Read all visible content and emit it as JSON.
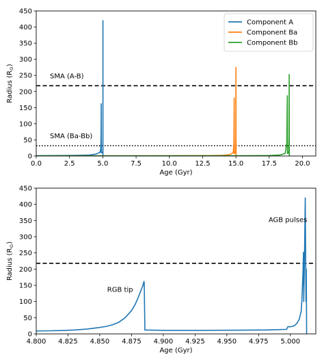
{
  "chart_data": [
    {
      "type": "line",
      "xlabel": "Age (Gyr)",
      "ylabel": "Radius (R$_\\odot$)",
      "ylabel_parts": {
        "main": "Radius (R",
        "sub": "⊙",
        "close": ")"
      },
      "xlim": [
        0,
        21
      ],
      "ylim": [
        0,
        450
      ],
      "xticks": [
        0.0,
        2.5,
        5.0,
        7.5,
        10.0,
        12.5,
        15.0,
        17.5,
        20.0
      ],
      "xtick_labels": [
        "0.0",
        "2.5",
        "5.0",
        "7.5",
        "10.0",
        "12.5",
        "15.0",
        "17.5",
        "20.0"
      ],
      "yticks": [
        0,
        50,
        100,
        150,
        200,
        250,
        300,
        350,
        400,
        450
      ],
      "ytick_labels": [
        "0",
        "50",
        "100",
        "150",
        "200",
        "250",
        "300",
        "350",
        "400",
        "450"
      ],
      "legend_position": "top-right",
      "series": [
        {
          "name": "Component A",
          "color": "#1f77b4",
          "x": [
            0.0,
            1.0,
            2.0,
            3.0,
            4.0,
            4.5,
            4.8,
            4.85,
            4.87,
            4.885,
            4.887,
            4.95,
            4.995,
            5.005,
            5.01,
            5.011,
            5.012,
            5.013,
            5.014
          ],
          "y": [
            1,
            1.2,
            1.5,
            2,
            3,
            6,
            12,
            25,
            60,
            162,
            10,
            10,
            12,
            25,
            100,
            420,
            250,
            0,
            0
          ]
        },
        {
          "name": "Component Ba",
          "color": "#ff7f0e",
          "x": [
            0.0,
            5.0,
            10.0,
            13.0,
            14.0,
            14.5,
            14.8,
            14.85,
            14.87,
            14.88,
            14.95,
            14.98,
            14.995,
            15.0,
            15.01,
            15.02
          ],
          "y": [
            0.5,
            0.6,
            0.8,
            1.2,
            2,
            4,
            10,
            40,
            180,
            8,
            9,
            15,
            60,
            275,
            0,
            0
          ]
        },
        {
          "name": "Component Bb",
          "color": "#2ca02c",
          "x": [
            0.0,
            5.0,
            10.0,
            15.0,
            17.5,
            18.3,
            18.7,
            18.82,
            18.86,
            18.87,
            18.93,
            18.97,
            18.995,
            19.0,
            19.01,
            19.02
          ],
          "y": [
            0.4,
            0.5,
            0.6,
            0.8,
            1.5,
            3,
            8,
            40,
            187,
            8,
            9,
            15,
            60,
            253,
            0,
            0
          ]
        }
      ],
      "hlines": [
        {
          "y": 218,
          "style": "dashed",
          "label": "SMA (A-B)"
        },
        {
          "y": 32,
          "style": "dotted",
          "label": "SMA (Ba-Bb)"
        }
      ]
    },
    {
      "type": "line",
      "xlabel": "Age (Gyr)",
      "ylabel": "Radius (R$_\\odot$)",
      "ylabel_parts": {
        "main": "Radius (R",
        "sub": "⊙",
        "close": ")"
      },
      "xlim": [
        4.8,
        5.02
      ],
      "ylim": [
        0,
        450
      ],
      "xticks": [
        4.8,
        4.825,
        4.85,
        4.875,
        4.9,
        4.925,
        4.95,
        4.975,
        5.0
      ],
      "xtick_labels": [
        "4.800",
        "4.825",
        "4.850",
        "4.875",
        "4.900",
        "4.925",
        "4.950",
        "4.975",
        "5.000"
      ],
      "yticks": [
        0,
        50,
        100,
        150,
        200,
        250,
        300,
        350,
        400,
        450
      ],
      "ytick_labels": [
        "0",
        "50",
        "100",
        "150",
        "200",
        "250",
        "300",
        "350",
        "400",
        "450"
      ],
      "series": [
        {
          "name": "",
          "color": "#1f77b4",
          "x": [
            4.8,
            4.81,
            4.82,
            4.83,
            4.84,
            4.85,
            4.855,
            4.86,
            4.865,
            4.87,
            4.875,
            4.878,
            4.88,
            4.882,
            4.884,
            4.8848,
            4.885,
            4.8855,
            4.9,
            4.93,
            4.96,
            4.98,
            4.99,
            4.997,
            4.998,
            5.0,
            5.003,
            5.005,
            5.007,
            5.0085,
            5.009,
            5.0095,
            5.01,
            5.0103,
            5.0105,
            5.011,
            5.0113,
            5.0117,
            5.012,
            5.0123,
            5.0125,
            5.0128
          ],
          "y": [
            9,
            9.5,
            10.5,
            12,
            15,
            20,
            23,
            28,
            36,
            50,
            72,
            92,
            110,
            130,
            150,
            162,
            155,
            12,
            11,
            11,
            11.5,
            12,
            13,
            14,
            22,
            22,
            25,
            32,
            45,
            70,
            100,
            150,
            200,
            252,
            100,
            210,
            300,
            420,
            250,
            100,
            200,
            0
          ]
        }
      ],
      "hlines": [
        {
          "y": 218,
          "style": "dashed",
          "label": ""
        }
      ],
      "annotations": [
        {
          "text": "RGB tip",
          "x": 4.866,
          "y": 130
        },
        {
          "text": "AGB pulses",
          "x": 4.998,
          "y": 345
        }
      ]
    }
  ]
}
